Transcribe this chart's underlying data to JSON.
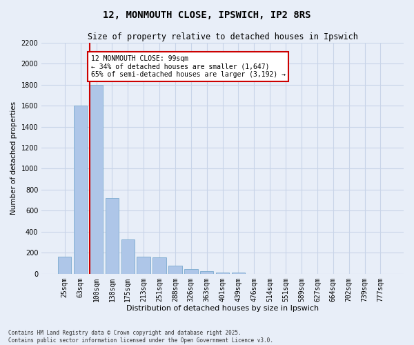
{
  "title": "12, MONMOUTH CLOSE, IPSWICH, IP2 8RS",
  "subtitle": "Size of property relative to detached houses in Ipswich",
  "xlabel": "Distribution of detached houses by size in Ipswich",
  "ylabel": "Number of detached properties",
  "categories": [
    "25sqm",
    "63sqm",
    "100sqm",
    "138sqm",
    "175sqm",
    "213sqm",
    "251sqm",
    "288sqm",
    "326sqm",
    "363sqm",
    "401sqm",
    "439sqm",
    "476sqm",
    "514sqm",
    "551sqm",
    "589sqm",
    "627sqm",
    "664sqm",
    "702sqm",
    "739sqm",
    "777sqm"
  ],
  "values": [
    165,
    1600,
    1800,
    720,
    330,
    160,
    155,
    80,
    45,
    25,
    15,
    12,
    0,
    0,
    0,
    0,
    0,
    0,
    0,
    0,
    0
  ],
  "bar_color": "#aec6e8",
  "bar_edge_color": "#7aaace",
  "vline_color": "#cc0000",
  "annotation_text": "12 MONMOUTH CLOSE: 99sqm\n← 34% of detached houses are smaller (1,647)\n65% of semi-detached houses are larger (3,192) →",
  "annotation_box_color": "#ffffff",
  "annotation_box_edge": "#cc0000",
  "grid_color": "#c8d4e8",
  "background_color": "#e8eef8",
  "footer_line1": "Contains HM Land Registry data © Crown copyright and database right 2025.",
  "footer_line2": "Contains public sector information licensed under the Open Government Licence v3.0.",
  "ylim": [
    0,
    2200
  ],
  "yticks": [
    0,
    200,
    400,
    600,
    800,
    1000,
    1200,
    1400,
    1600,
    1800,
    2000,
    2200
  ],
  "title_fontsize": 10,
  "subtitle_fontsize": 8.5,
  "tick_fontsize": 7,
  "ylabel_fontsize": 7.5,
  "xlabel_fontsize": 8
}
